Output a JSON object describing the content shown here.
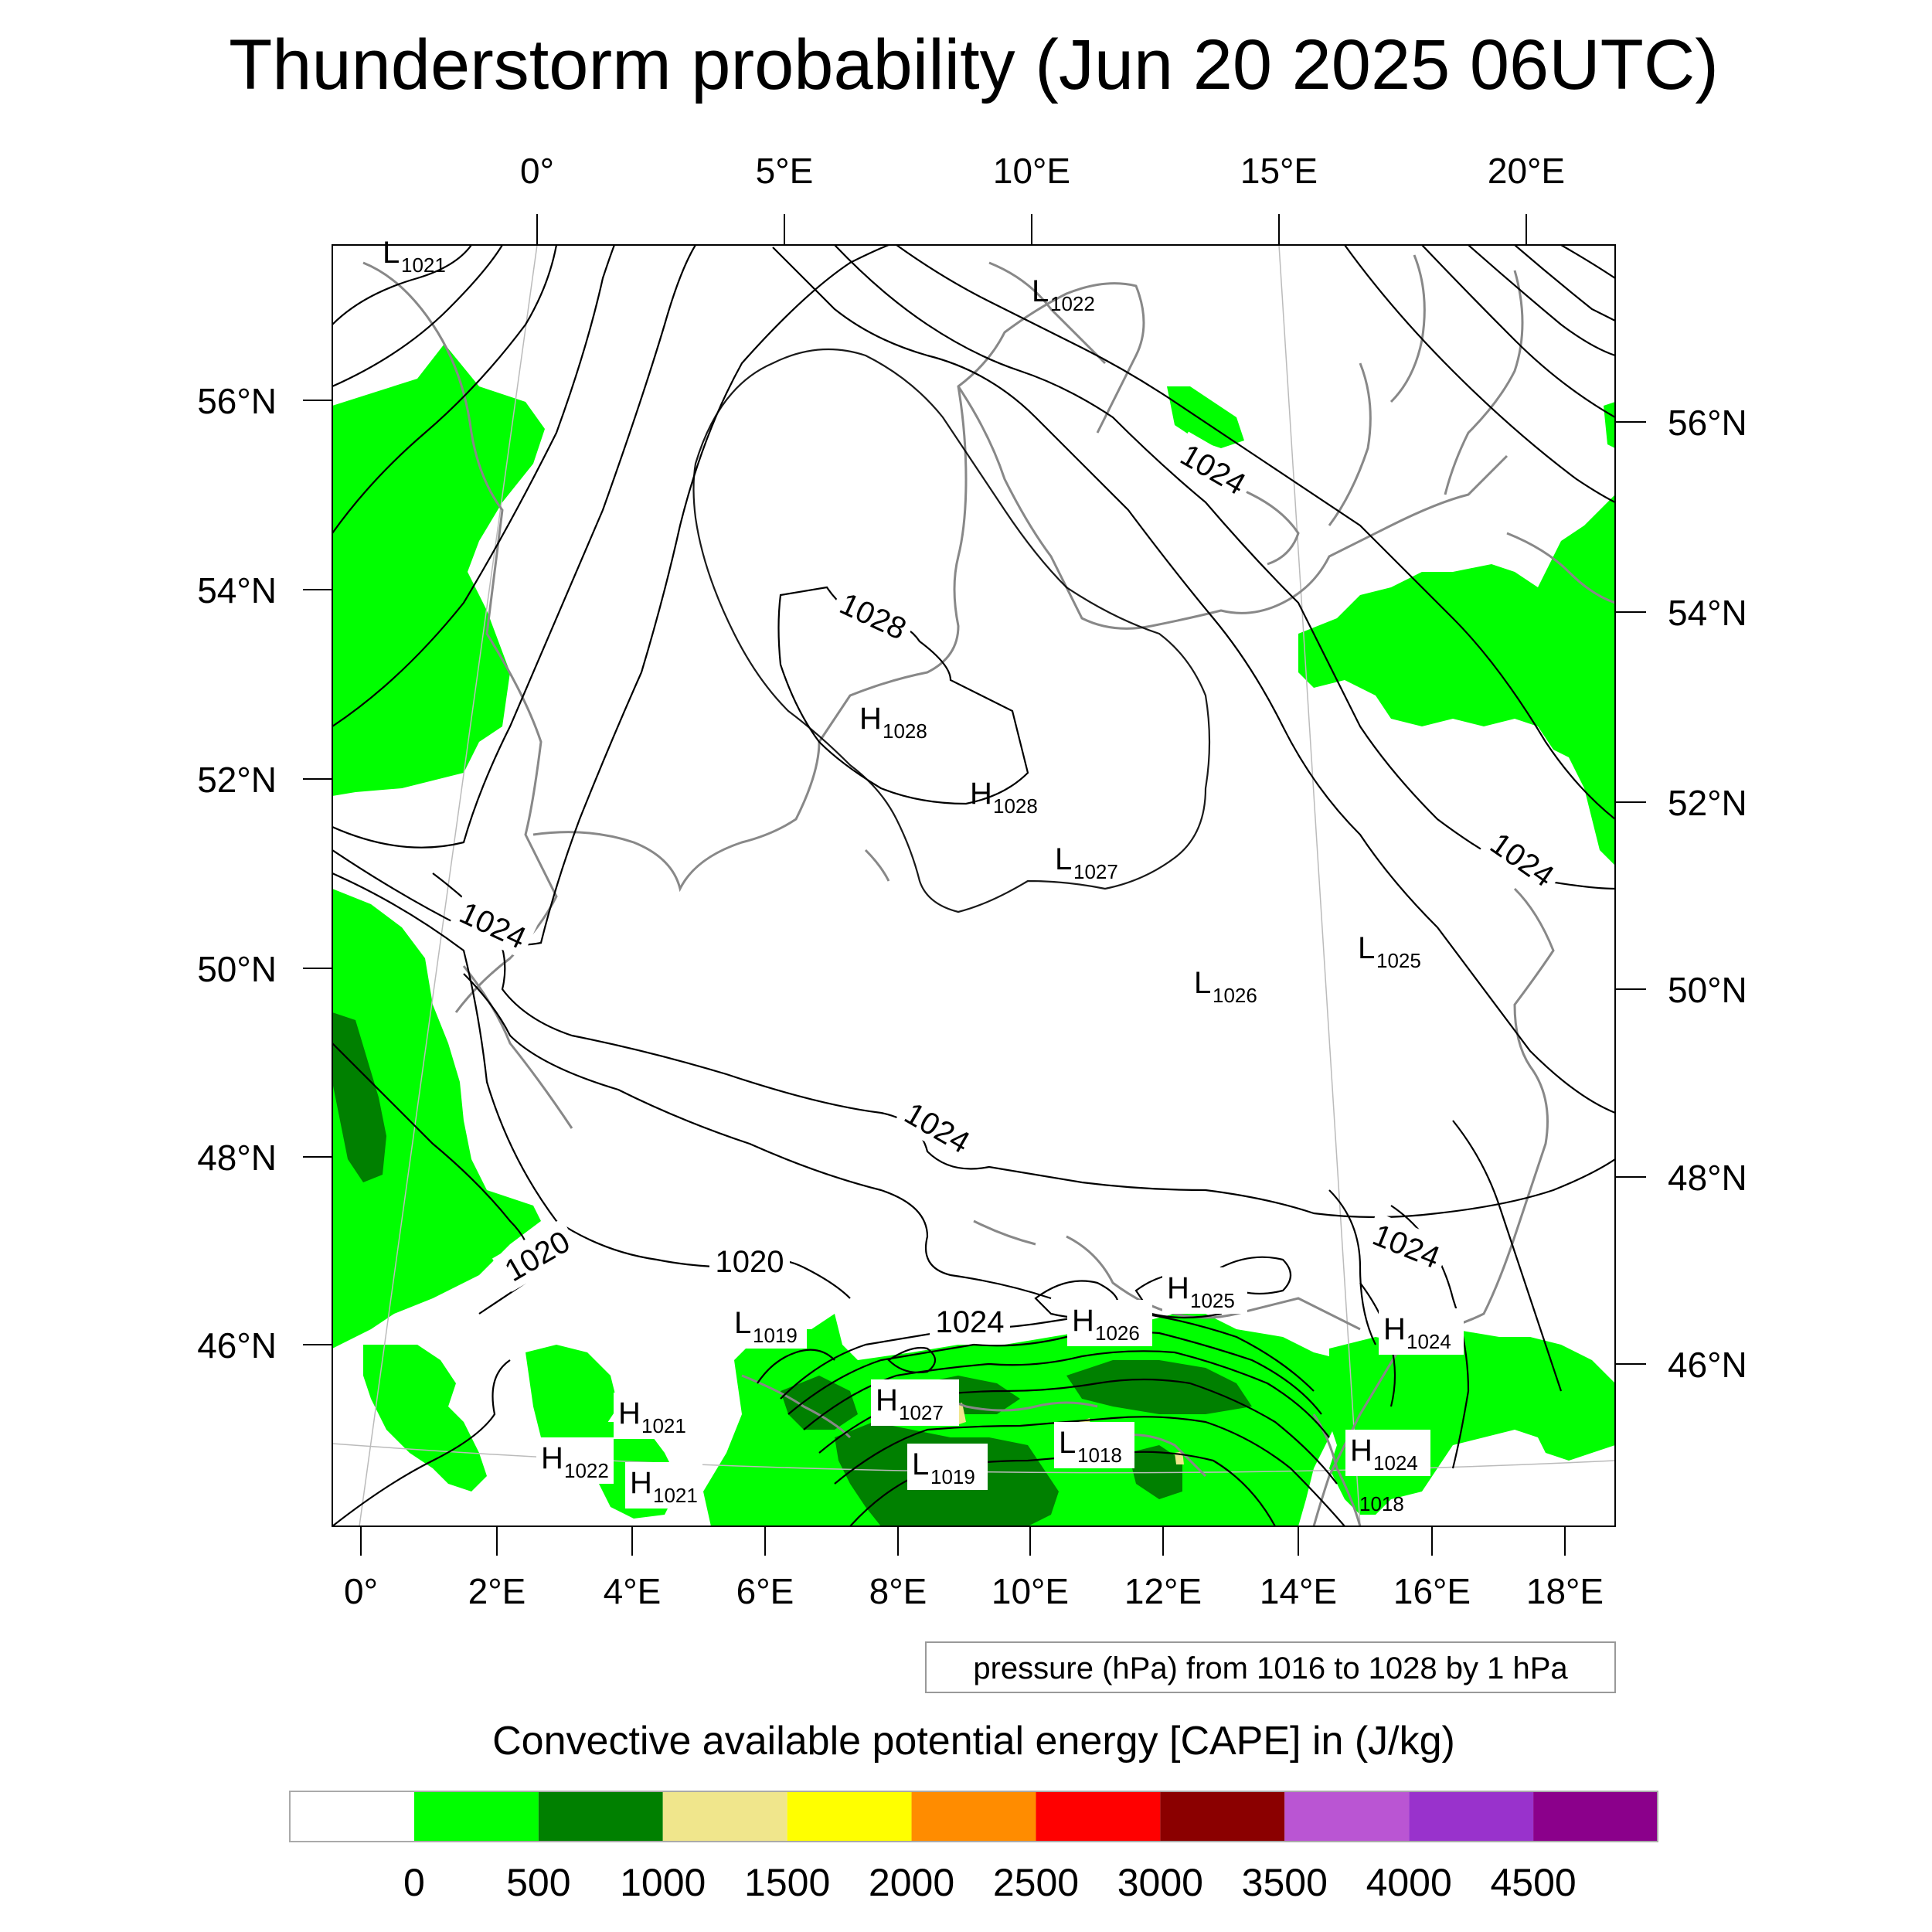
{
  "title": "Thunderstorm probability (Jun 20 2025 06UTC)",
  "top_lon_labels": [
    "0°",
    "5°E",
    "10°E",
    "15°E",
    "20°E"
  ],
  "bottom_lon_labels": [
    "0°",
    "2°E",
    "4°E",
    "6°E",
    "8°E",
    "10°E",
    "12°E",
    "14°E",
    "16°E",
    "18°E"
  ],
  "left_lat_labels": [
    "56°N",
    "54°N",
    "52°N",
    "50°N",
    "48°N",
    "46°N"
  ],
  "right_lat_labels": [
    "56°N",
    "54°N",
    "52°N",
    "50°N",
    "48°N",
    "46°N"
  ],
  "contour_info": "pressure (hPa) from 1016 to 1028 by 1 hPa",
  "isobar_labels": [
    "1028",
    "1024",
    "1024",
    "1024",
    "1024",
    "1024",
    "1020",
    "1020",
    "1024"
  ],
  "pressure_centers": [
    {
      "type": "L",
      "value": "1021"
    },
    {
      "type": "L",
      "value": "1022"
    },
    {
      "type": "H",
      "value": "1028"
    },
    {
      "type": "H",
      "value": "1028"
    },
    {
      "type": "L",
      "value": "1027"
    },
    {
      "type": "L",
      "value": "1026"
    },
    {
      "type": "L",
      "value": "1025"
    },
    {
      "type": "L",
      "value": "1019"
    },
    {
      "type": "H",
      "value": "1025"
    },
    {
      "type": "H",
      "value": "1026"
    },
    {
      "type": "H",
      "value": "1024"
    },
    {
      "type": "H",
      "value": "1027"
    },
    {
      "type": "H",
      "value": "1021"
    },
    {
      "type": "H",
      "value": "1022"
    },
    {
      "type": "H",
      "value": "1021"
    },
    {
      "type": "L",
      "value": "1019"
    },
    {
      "type": "L",
      "value": "1018"
    },
    {
      "type": "H",
      "value": "1024"
    },
    {
      "type": "L",
      "value": "1018"
    }
  ],
  "colorbar": {
    "title": "Convective available potential energy [CAPE] in (J/kg)",
    "colors": [
      "#ffffff",
      "#00ff00",
      "#008000",
      "#f0e68c",
      "#ffff00",
      "#ff8c00",
      "#ff0000",
      "#8b0000",
      "#ba55d3",
      "#9932cc",
      "#8b008b"
    ],
    "tick_labels": [
      "0",
      "500",
      "1000",
      "1500",
      "2000",
      "2500",
      "3000",
      "3500",
      "4000",
      "4500"
    ]
  }
}
